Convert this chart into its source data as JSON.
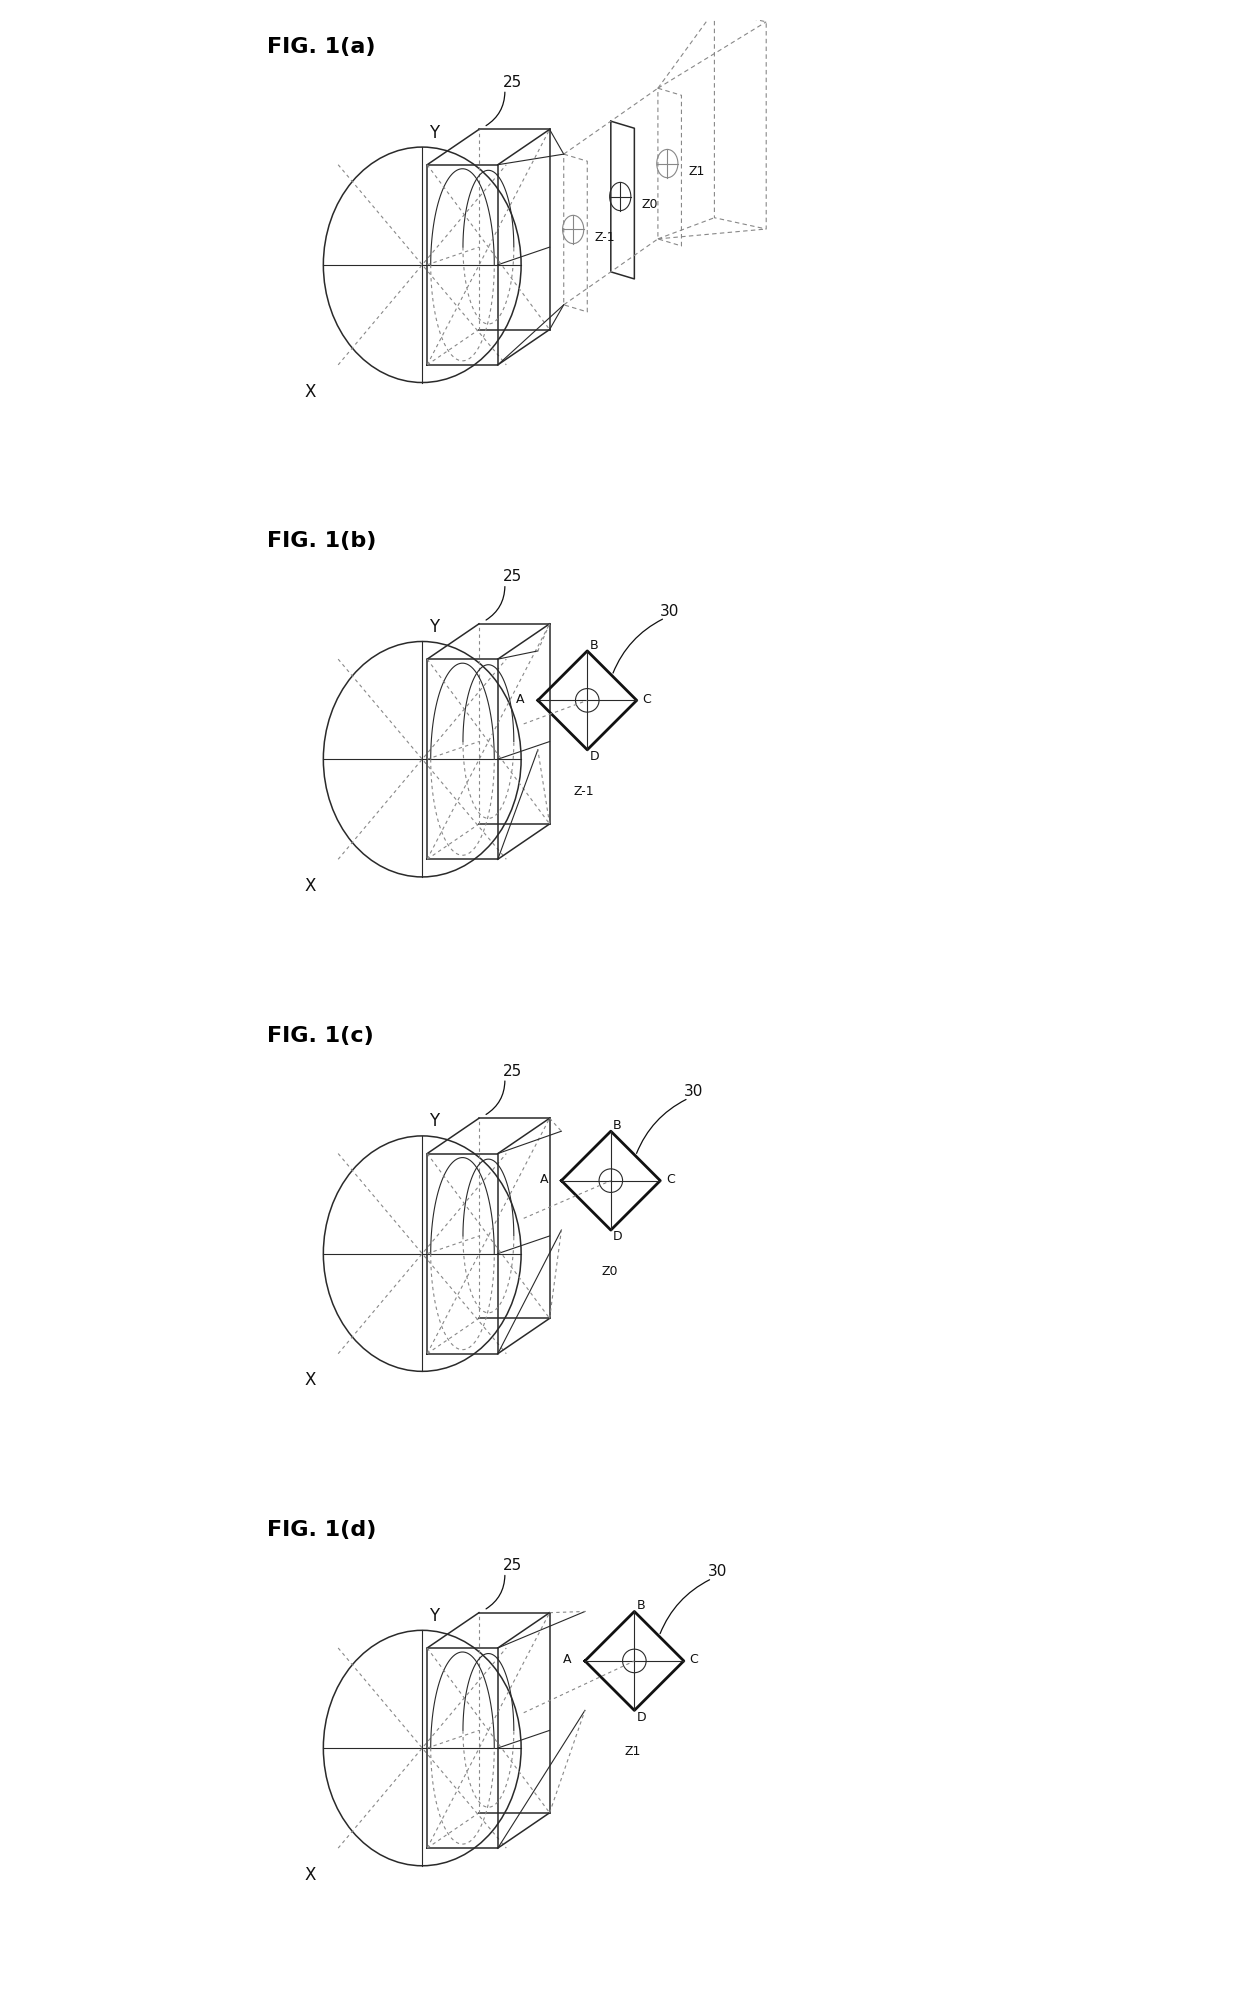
{
  "bg_color": "#ffffff",
  "lc": "#2a2a2a",
  "dc": "#888888",
  "bc": "#111111",
  "fig_labels": [
    "FIG. 1(a)",
    "FIG. 1(b)",
    "FIG. 1(c)",
    "FIG. 1(d)"
  ],
  "lw_thin": 0.8,
  "lw_med": 1.1,
  "lw_bold": 2.0,
  "font_label": 16,
  "font_annot": 12,
  "font_small": 11
}
